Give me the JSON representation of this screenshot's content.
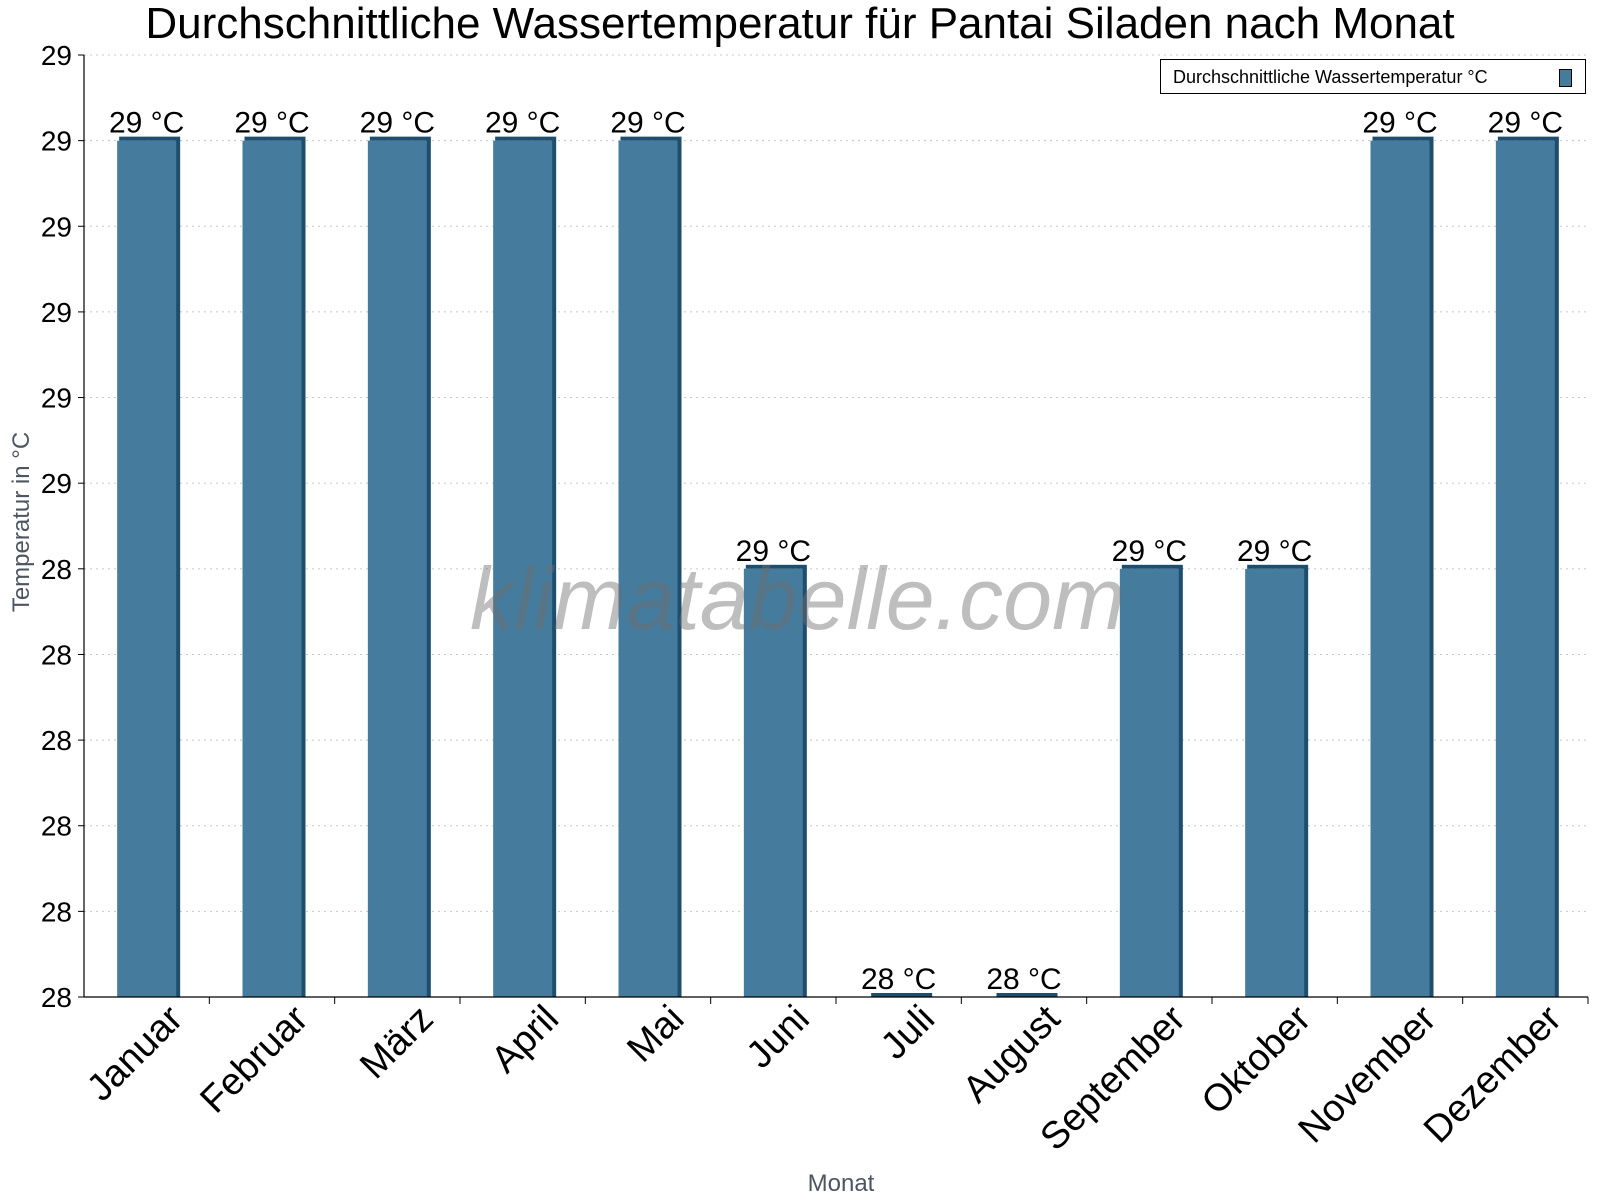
{
  "chart_data": {
    "type": "bar",
    "title": "Durchschnittliche Wassertemperatur für Pantai Siladen nach Monat",
    "xlabel": "Monat",
    "ylabel": "Temperatur in °C",
    "categories": [
      "Januar",
      "Februar",
      "März",
      "April",
      "Mai",
      "Juni",
      "Juli",
      "August",
      "September",
      "Oktober",
      "November",
      "Dezember"
    ],
    "series": [
      {
        "name": "Durchschnittliche Wassertemperatur °C",
        "values": [
          29.0,
          29.0,
          29.0,
          29.0,
          29.0,
          28.5,
          28.0,
          28.0,
          28.5,
          28.5,
          29.0,
          29.0
        ],
        "labels": [
          "29 °C",
          "29 °C",
          "29 °C",
          "29 °C",
          "29 °C",
          "29 °C",
          "28 °C",
          "28 °C",
          "29 °C",
          "29 °C",
          "29 °C",
          "29 °C"
        ]
      }
    ],
    "ylim": [
      28.0,
      29.1
    ],
    "yticks": [
      28.0,
      28.1,
      28.2,
      28.3,
      28.4,
      28.5,
      28.6,
      28.7,
      28.8,
      28.9,
      29.0,
      29.1
    ],
    "ytick_labels": [
      "28",
      "28",
      "28",
      "28",
      "28",
      "28",
      "29",
      "29",
      "29",
      "29",
      "29",
      "29"
    ],
    "grid": true,
    "legend": "top-right",
    "colors": {
      "bar": "#457b9d",
      "bar_edge": "#1d4e6e"
    }
  },
  "watermark": "klimatabelle.com"
}
